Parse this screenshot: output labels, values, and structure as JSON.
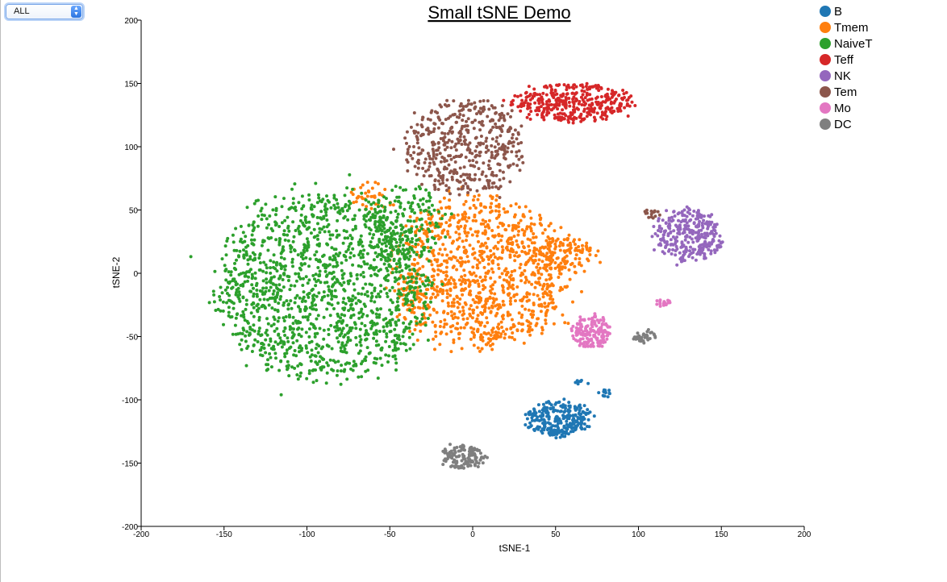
{
  "controls": {
    "filter_select": {
      "selected": "ALL"
    }
  },
  "chart_data": {
    "type": "scatter",
    "title": "Small tSNE Demo",
    "xlabel": "tSNE-1",
    "ylabel": "tSNE-2",
    "xlim": [
      -200,
      200
    ],
    "ylim": [
      -200,
      200
    ],
    "xticks": [
      -200,
      -150,
      -100,
      -50,
      0,
      50,
      100,
      150,
      200
    ],
    "yticks": [
      -200,
      -150,
      -100,
      -50,
      0,
      50,
      100,
      150,
      200
    ],
    "grid": false,
    "legend_position": "top-right",
    "series": [
      {
        "name": "B",
        "color": "#1f77b4",
        "clusters": [
          {
            "cx": 52,
            "cy": -115,
            "rx": 20,
            "ry": 15,
            "n": 260
          },
          {
            "cx": 80,
            "cy": -95,
            "rx": 5,
            "ry": 3,
            "n": 15
          },
          {
            "cx": 65,
            "cy": -86,
            "rx": 5,
            "ry": 2,
            "n": 8
          }
        ]
      },
      {
        "name": "Tmem",
        "color": "#ff7f0e",
        "clusters": [
          {
            "cx": 5,
            "cy": 0,
            "rx": 58,
            "ry": 62,
            "n": 1100
          },
          {
            "cx": 55,
            "cy": 15,
            "rx": 20,
            "ry": 15,
            "n": 120
          },
          {
            "cx": -60,
            "cy": 60,
            "rx": 15,
            "ry": 12,
            "n": 40
          }
        ]
      },
      {
        "name": "NaiveT",
        "color": "#2ca02c",
        "clusters": [
          {
            "cx": -90,
            "cy": -10,
            "rx": 68,
            "ry": 78,
            "n": 1500
          },
          {
            "cx": -40,
            "cy": 40,
            "rx": 25,
            "ry": 30,
            "n": 150
          }
        ]
      },
      {
        "name": "Teff",
        "color": "#d62728",
        "clusters": [
          {
            "cx": 60,
            "cy": 135,
            "rx": 38,
            "ry": 16,
            "n": 380
          }
        ]
      },
      {
        "name": "NK",
        "color": "#9467bd",
        "clusters": [
          {
            "cx": 130,
            "cy": 30,
            "rx": 22,
            "ry": 22,
            "n": 300
          }
        ]
      },
      {
        "name": "Tem",
        "color": "#8c564b",
        "clusters": [
          {
            "cx": -5,
            "cy": 100,
            "rx": 38,
            "ry": 40,
            "n": 480
          },
          {
            "cx": 108,
            "cy": 47,
            "rx": 6,
            "ry": 4,
            "n": 15
          }
        ]
      },
      {
        "name": "Mo",
        "color": "#e377c2",
        "clusters": [
          {
            "cx": 72,
            "cy": -47,
            "rx": 12,
            "ry": 14,
            "n": 170
          },
          {
            "cx": 115,
            "cy": -23,
            "rx": 5,
            "ry": 3,
            "n": 20
          }
        ]
      },
      {
        "name": "DC",
        "color": "#7f7f7f",
        "clusters": [
          {
            "cx": -5,
            "cy": -145,
            "rx": 14,
            "ry": 10,
            "n": 140
          },
          {
            "cx": 104,
            "cy": -50,
            "rx": 8,
            "ry": 5,
            "n": 35
          }
        ]
      }
    ]
  }
}
